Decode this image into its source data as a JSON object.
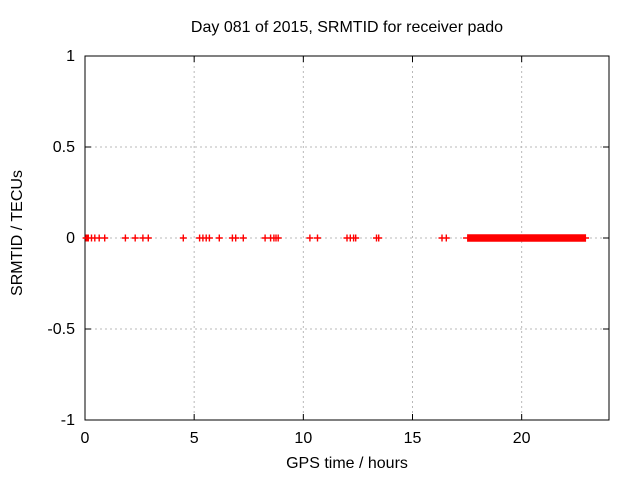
{
  "title": "Day 081 of 2015, SRMTID for receiver pado",
  "colors": {
    "background": "#ffffff",
    "border": "#000000",
    "grid": "#b8b8b8",
    "text": "#000000",
    "marker": "#ff0000"
  },
  "chart_data": {
    "type": "scatter",
    "title": "Day 081 of 2015, SRMTID for receiver pado",
    "xlabel": "GPS time / hours",
    "ylabel": "SRMTID / TECUs",
    "xlim": [
      0,
      24
    ],
    "ylim": [
      -1,
      1
    ],
    "xticks": [
      0,
      5,
      10,
      15,
      20
    ],
    "xtick_labels": [
      "0",
      "5",
      "10",
      "15",
      "20"
    ],
    "yticks": [
      1,
      0.5,
      0,
      -0.5,
      -1
    ],
    "ytick_labels": [
      "1",
      "0.5",
      "0",
      "-0.5",
      "-1"
    ],
    "grid": true,
    "legend": "none",
    "marker": "plus",
    "marker_color": "#ff0000",
    "marker_size_px": 7,
    "series": [
      {
        "name": "SRMTID",
        "y_value": 0,
        "x_points": [
          0.05,
          0.1,
          0.15,
          0.3,
          0.45,
          0.65,
          0.9,
          1.85,
          2.3,
          2.65,
          2.9,
          4.5,
          5.25,
          5.4,
          5.55,
          5.7,
          6.15,
          6.75,
          6.9,
          7.25,
          8.25,
          8.5,
          8.65,
          8.75,
          8.85,
          10.3,
          10.65,
          12.0,
          12.15,
          12.3,
          12.4,
          13.35,
          13.45,
          16.35,
          16.55
        ],
        "dense_segment": {
          "x_start": 17.5,
          "x_end": 22.95,
          "y": 0
        }
      }
    ]
  }
}
